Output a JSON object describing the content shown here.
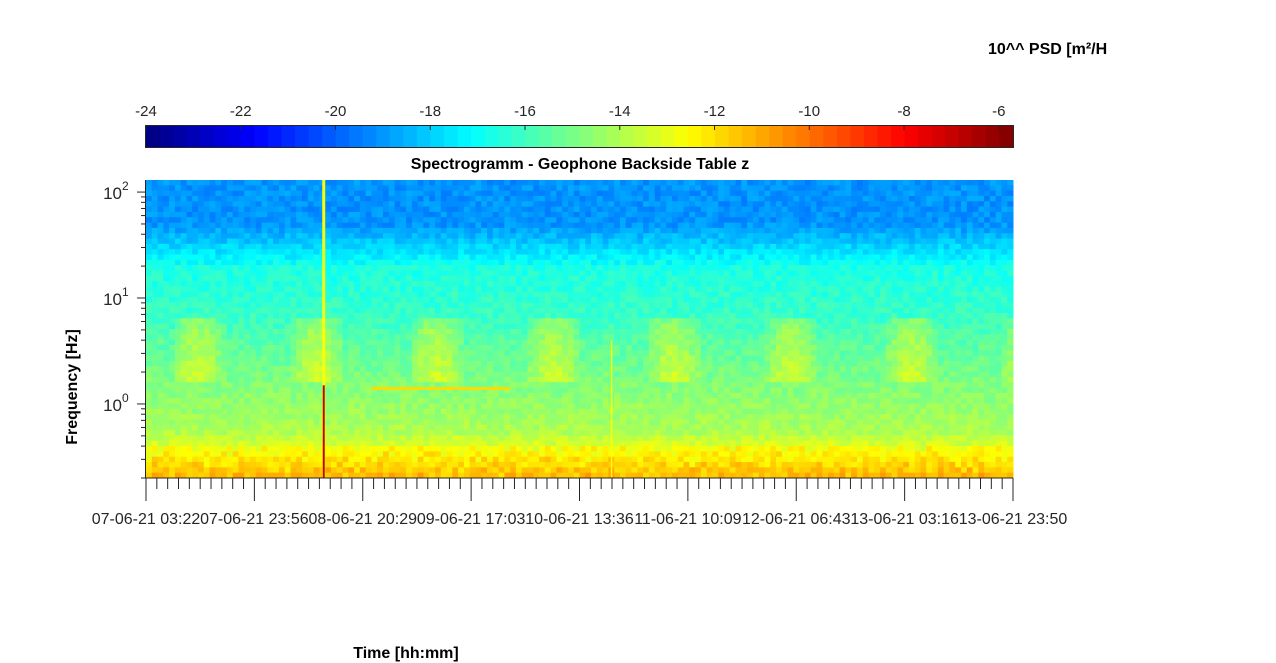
{
  "chart_data": {
    "type": "heatmap",
    "title": "Spectrogramm - Geophone Backside Table z",
    "xlabel": "Time [hh:mm]",
    "ylabel": "Frequency [Hz]",
    "colorbar_label": "10^^ PSD [m²/H",
    "colorbar": {
      "range": [
        -24,
        -5.7
      ],
      "ticks": [
        -24,
        -22,
        -20,
        -18,
        -16,
        -14,
        -12,
        -10,
        -8,
        -6
      ],
      "tick_labels": [
        "-24",
        "-22",
        "-20",
        "-18",
        "-16",
        "-14",
        "-12",
        "-10",
        "-8",
        "-6"
      ],
      "colormap": "jet",
      "placement": "top"
    },
    "y_scale": "log",
    "ylim": [
      0.2,
      130
    ],
    "y_ticks": [
      1,
      10,
      100
    ],
    "y_tick_labels": [
      {
        "base": "10",
        "exp": "0"
      },
      {
        "base": "10",
        "exp": "1"
      },
      {
        "base": "10",
        "exp": "2"
      }
    ],
    "x_tick_labels": [
      "07-06-21 03:22",
      "07-06-21 23:56",
      "08-06-21 20:29",
      "09-06-21 17:03",
      "10-06-21 13:36",
      "11-06-21 10:09",
      "12-06-21 06:43",
      "13-06-21 03:16",
      "13-06-21 23:50"
    ],
    "x_minor_per_major": 10,
    "features": [
      {
        "type": "vertical_burst",
        "x_fraction": 0.205,
        "note": ""
      },
      {
        "type": "vertical_line",
        "x_fraction": 0.537
      },
      {
        "type": "horizontal_tone",
        "x_range_fraction": [
          0.26,
          0.42
        ],
        "freq": 1.4
      }
    ]
  }
}
